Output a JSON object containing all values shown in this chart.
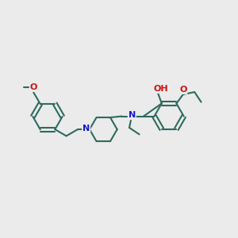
{
  "bg_color": "#ebebeb",
  "bond_color": "#2d6b5e",
  "N_color": "#1a1acc",
  "O_color": "#cc1111",
  "lw": 1.5,
  "figsize": [
    3.0,
    3.0
  ],
  "dpi": 100,
  "xlim": [
    0,
    10
  ],
  "ylim": [
    0,
    10
  ],
  "ring_r": 0.62,
  "pip_r": 0.58,
  "font_size": 7.5
}
